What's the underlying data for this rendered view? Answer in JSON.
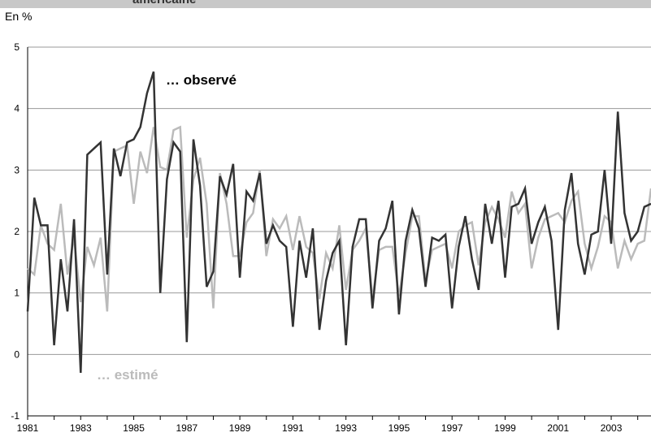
{
  "header": {
    "title_fragment": "américaine",
    "unit_label": "En %"
  },
  "chart_data": {
    "type": "line",
    "xlim": [
      1981,
      2004.5
    ],
    "ylim": [
      -1,
      5
    ],
    "y_ticks": [
      "5",
      "4",
      "3",
      "2",
      "1",
      "0",
      "-1"
    ],
    "x_ticks": [
      "1981",
      "1983",
      "1985",
      "1987",
      "1989",
      "1991",
      "1993",
      "1995",
      "1997",
      "1999",
      "2001",
      "2003"
    ],
    "grid": true,
    "colors": {
      "observed": "#333333",
      "estimated": "#bbbbbb"
    },
    "annotations": {
      "observed": "… observé",
      "estimated": "… estimé"
    },
    "series": [
      {
        "name": "observé",
        "x": [
          1981.0,
          1981.25,
          1981.5,
          1981.75,
          1982.0,
          1982.25,
          1982.5,
          1982.75,
          1983.0,
          1983.25,
          1983.5,
          1983.75,
          1984.0,
          1984.25,
          1984.5,
          1984.75,
          1985.0,
          1985.25,
          1985.5,
          1985.75,
          1986.0,
          1986.25,
          1986.5,
          1986.75,
          1987.0,
          1987.25,
          1987.5,
          1987.75,
          1988.0,
          1988.25,
          1988.5,
          1988.75,
          1989.0,
          1989.25,
          1989.5,
          1989.75,
          1990.0,
          1990.25,
          1990.5,
          1990.75,
          1991.0,
          1991.25,
          1991.5,
          1991.75,
          1992.0,
          1992.25,
          1992.5,
          1992.75,
          1993.0,
          1993.25,
          1993.5,
          1993.75,
          1994.0,
          1994.25,
          1994.5,
          1994.75,
          1995.0,
          1995.25,
          1995.5,
          1995.75,
          1996.0,
          1996.25,
          1996.5,
          1996.75,
          1997.0,
          1997.25,
          1997.5,
          1997.75,
          1998.0,
          1998.25,
          1998.5,
          1998.75,
          1999.0,
          1999.25,
          1999.5,
          1999.75,
          2000.0,
          2000.25,
          2000.5,
          2000.75,
          2001.0,
          2001.25,
          2001.5,
          2001.75,
          2002.0,
          2002.25,
          2002.5,
          2002.75,
          2003.0,
          2003.25,
          2003.5,
          2003.75,
          2004.0,
          2004.25,
          2004.5
        ],
        "values": [
          0.7,
          2.55,
          2.1,
          2.1,
          0.15,
          1.55,
          0.7,
          2.2,
          -0.3,
          3.25,
          3.35,
          3.45,
          1.3,
          3.35,
          2.9,
          3.45,
          3.5,
          3.7,
          4.25,
          4.6,
          1.0,
          2.85,
          3.45,
          3.3,
          0.2,
          3.5,
          2.75,
          1.1,
          1.35,
          2.9,
          2.6,
          3.1,
          1.25,
          2.65,
          2.5,
          2.95,
          1.8,
          2.1,
          1.85,
          1.75,
          0.45,
          1.85,
          1.25,
          2.05,
          0.4,
          1.2,
          1.65,
          1.85,
          0.15,
          1.75,
          2.2,
          2.2,
          0.75,
          1.85,
          2.05,
          2.5,
          0.65,
          1.85,
          2.35,
          2.05,
          1.1,
          1.9,
          1.85,
          1.95,
          0.75,
          1.75,
          2.25,
          1.55,
          1.05,
          2.45,
          1.8,
          2.5,
          1.25,
          2.4,
          2.45,
          2.7,
          1.8,
          2.15,
          2.4,
          1.85,
          0.4,
          2.35,
          2.95,
          1.8,
          1.3,
          1.95,
          2.0,
          3.0,
          1.8,
          3.95,
          2.3,
          1.85,
          2.0,
          2.4,
          2.45
        ]
      },
      {
        "name": "estimé",
        "x": [
          1981.0,
          1981.25,
          1981.5,
          1981.75,
          1982.0,
          1982.25,
          1982.5,
          1982.75,
          1983.0,
          1983.25,
          1983.5,
          1983.75,
          1984.0,
          1984.25,
          1984.5,
          1984.75,
          1985.0,
          1985.25,
          1985.5,
          1985.75,
          1986.0,
          1986.25,
          1986.5,
          1986.75,
          1987.0,
          1987.25,
          1987.5,
          1987.75,
          1988.0,
          1988.25,
          1988.5,
          1988.75,
          1989.0,
          1989.25,
          1989.5,
          1989.75,
          1990.0,
          1990.25,
          1990.5,
          1990.75,
          1991.0,
          1991.25,
          1991.5,
          1991.75,
          1992.0,
          1992.25,
          1992.5,
          1992.75,
          1993.0,
          1993.25,
          1993.5,
          1993.75,
          1994.0,
          1994.25,
          1994.5,
          1994.75,
          1995.0,
          1995.25,
          1995.5,
          1995.75,
          1996.0,
          1996.25,
          1996.5,
          1996.75,
          1997.0,
          1997.25,
          1997.5,
          1997.75,
          1998.0,
          1998.25,
          1998.5,
          1998.75,
          1999.0,
          1999.25,
          1999.5,
          1999.75,
          2000.0,
          2000.25,
          2000.5,
          2000.75,
          2001.0,
          2001.25,
          2001.5,
          2001.75,
          2002.0,
          2002.25,
          2002.5,
          2002.75,
          2003.0,
          2003.25,
          2003.5,
          2003.75,
          2004.0,
          2004.25,
          2004.5
        ],
        "values": [
          1.4,
          1.3,
          2.1,
          1.8,
          1.7,
          2.45,
          1.3,
          1.9,
          0.85,
          1.75,
          1.45,
          1.9,
          0.7,
          3.3,
          3.35,
          3.4,
          2.45,
          3.3,
          2.95,
          3.7,
          3.05,
          3.0,
          3.65,
          3.7,
          1.9,
          2.85,
          3.2,
          2.45,
          0.75,
          2.95,
          2.45,
          1.6,
          1.6,
          2.15,
          2.3,
          3.0,
          1.6,
          2.2,
          2.05,
          2.25,
          1.7,
          2.25,
          1.75,
          1.65,
          0.9,
          1.65,
          1.4,
          2.1,
          1.05,
          1.7,
          1.85,
          2.05,
          0.9,
          1.7,
          1.75,
          1.75,
          0.95,
          1.65,
          2.25,
          2.25,
          1.2,
          1.7,
          1.75,
          1.8,
          1.4,
          2.0,
          2.1,
          2.15,
          1.45,
          2.15,
          2.4,
          2.2,
          1.9,
          2.65,
          2.3,
          2.45,
          1.4,
          1.9,
          2.2,
          2.25,
          2.3,
          2.15,
          2.5,
          2.65,
          1.8,
          1.4,
          1.75,
          2.25,
          2.15,
          1.4,
          1.85,
          1.55,
          1.8,
          1.85,
          2.7
        ]
      }
    ]
  }
}
